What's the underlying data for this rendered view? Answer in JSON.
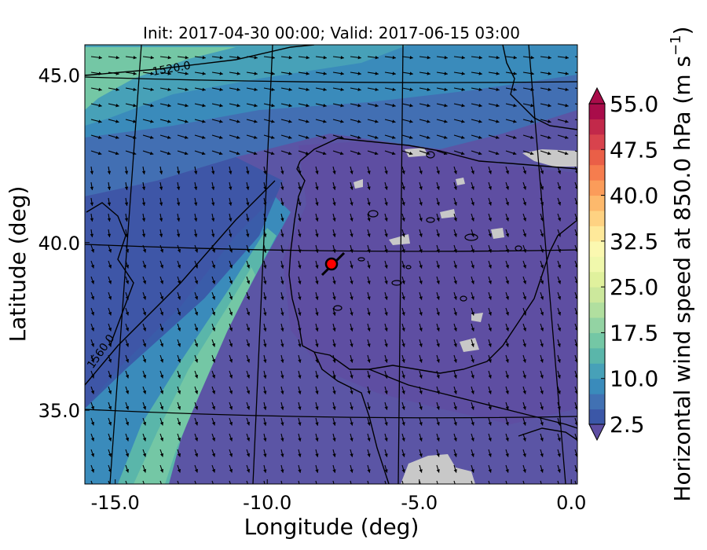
{
  "title": "Init: 2017-04-30 00:00; Valid: 2017-06-15 03:00",
  "xlabel": "Longitude (deg)",
  "ylabel": "Latitude (deg)",
  "colorbar_label": "Horizontal wind speed at 850.0 hPa (m s$^{-1}$)",
  "colorbar_label_main": "Horizontal wind speed at 850.0 hPa (m s",
  "colorbar_label_exp": "−1",
  "colorbar_label_close": ")",
  "x_ticks": [
    {
      "value": -15.0,
      "label": "-15.0"
    },
    {
      "value": -10.0,
      "label": "-10.0"
    },
    {
      "value": -5.0,
      "label": "-5.0"
    },
    {
      "value": 0.0,
      "label": "0.0"
    }
  ],
  "y_ticks": [
    {
      "value": 45.0,
      "label": "45.0"
    },
    {
      "value": 40.0,
      "label": "40.0"
    },
    {
      "value": 35.0,
      "label": "35.0"
    }
  ],
  "xlim": [
    -16.0,
    0.2
  ],
  "ylim": [
    32.8,
    45.9
  ],
  "colorbar": {
    "min": 2.5,
    "max": 55.0,
    "step": 2.5,
    "ticks": [
      "2.5",
      "10.0",
      "17.5",
      "25.0",
      "32.5",
      "40.0",
      "47.5",
      "55.0"
    ],
    "colors": [
      "#3b57a7",
      "#4171b3",
      "#3a8bbb",
      "#47a1b8",
      "#5ab6aa",
      "#74c7a5",
      "#93d3a3",
      "#b1df9f",
      "#cce89c",
      "#e0f19d",
      "#f0f8ac",
      "#fbf8b0",
      "#fee99a",
      "#fed282",
      "#fdb96c",
      "#fb9c5a",
      "#f67d4e",
      "#ea5f47",
      "#d8434d",
      "#c2294a",
      "#a90c4a"
    ],
    "under_color": "#5e4ea2",
    "over_color": "#a90c4a"
  },
  "contours": [
    {
      "label": "1520.0"
    },
    {
      "label": "1560.0"
    }
  ],
  "marker": {
    "lon": -7.6,
    "lat": 39.35,
    "color": "#ff0000"
  },
  "colors": {
    "background_field": "#5c5aa7",
    "low_wind": "#5e4ea2",
    "medium_wind": "#3a8bbb",
    "high_wind": "#74c7a5",
    "terrain_mask": "#c8c8c8",
    "coast": "#000000"
  }
}
